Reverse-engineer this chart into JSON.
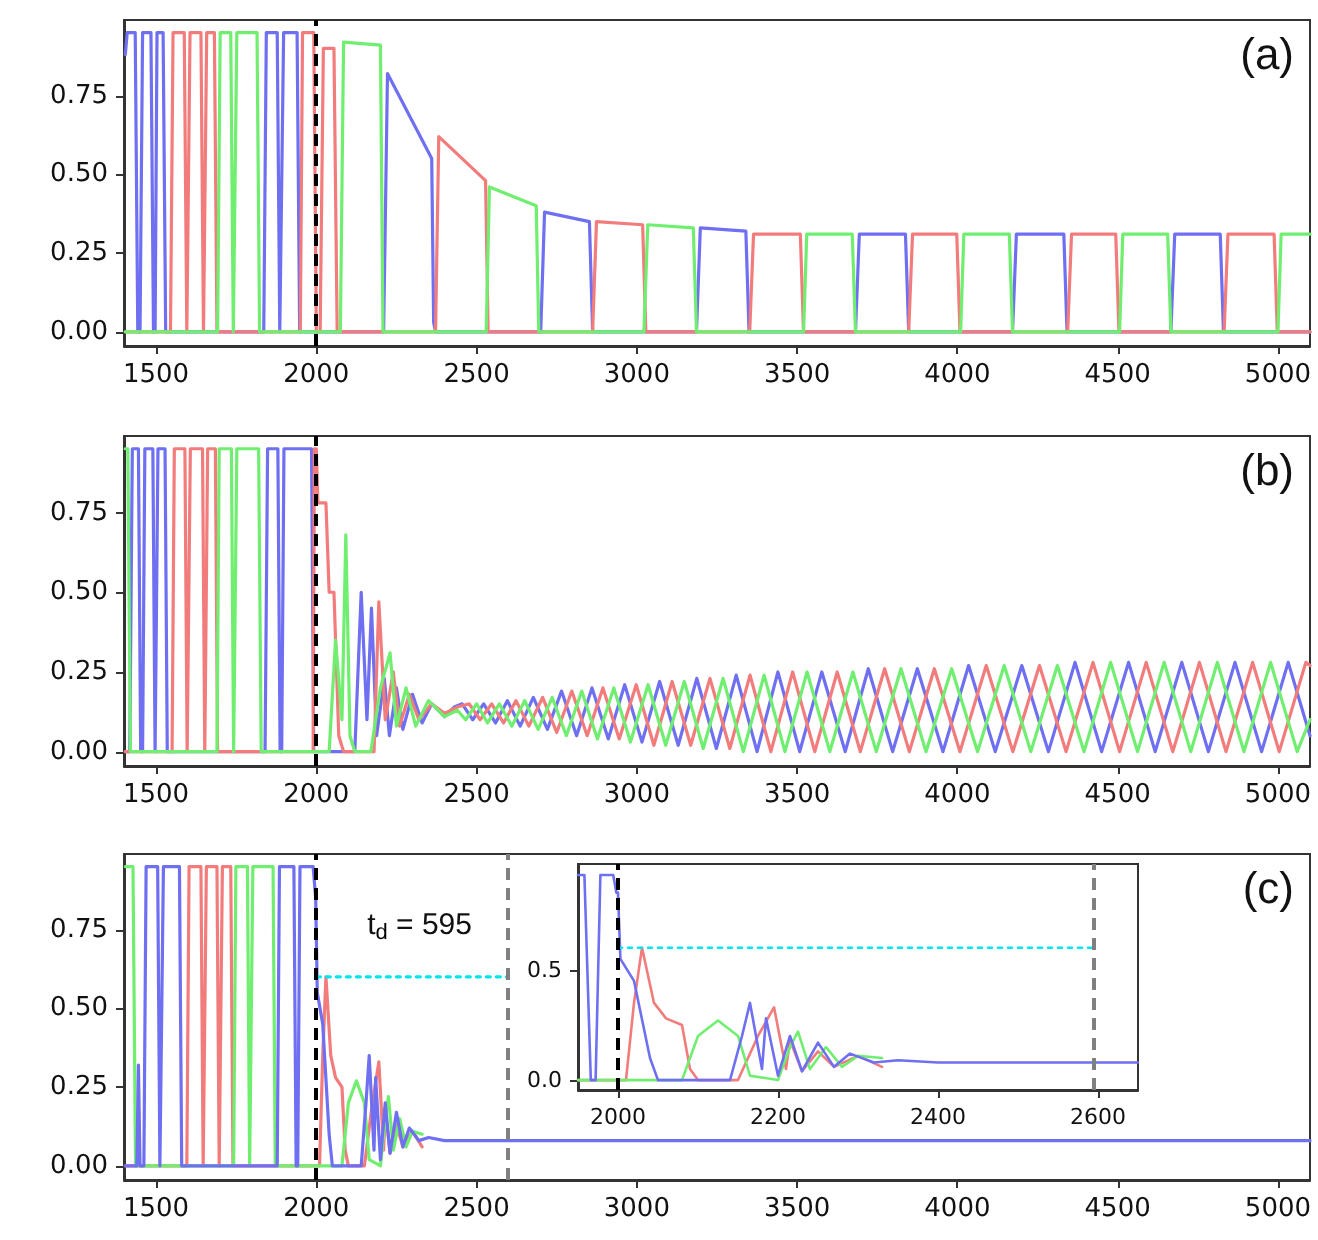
{
  "chart_data": [
    {
      "type": "line",
      "line_style": "solid",
      "xlim": [
        1400,
        5100
      ],
      "ylim": [
        -0.045,
        0.99
      ],
      "xticks": [
        1500,
        2000,
        2500,
        3000,
        3500,
        4000,
        4500,
        5000
      ],
      "yticks": [
        {
          "value": 0,
          "label": "0.00"
        },
        {
          "value": 0.25,
          "label": "0.25"
        },
        {
          "value": 0.5,
          "label": "0.50"
        },
        {
          "value": 0.75,
          "label": "0.75"
        }
      ],
      "annotations": [
        "(a)"
      ],
      "ref_lines": [
        {
          "axis": "x",
          "value": 2000,
          "color": "#000000",
          "line_style": "dashed"
        }
      ],
      "series": [
        {
          "color": "#6f6ff2",
          "x": [
            1404,
            1410,
            1435,
            1443,
            1450,
            1458,
            1484,
            1492,
            1497,
            1503,
            1522,
            1530,
            1836,
            1844,
            1878,
            1886,
            1890,
            1898,
            1940,
            1948,
            2210,
            2222,
            2360,
            2366,
            2372,
            2700,
            2712,
            2852,
            2862,
            3186,
            3198,
            3340,
            3350,
            3682,
            3694,
            3838,
            3848,
            4172,
            4184,
            4332,
            4342,
            4666,
            4678,
            4820,
            4830,
            5100
          ],
          "values": [
            0.88,
            0.95,
            0.95,
            0,
            0,
            0.95,
            0.95,
            0,
            0,
            0.95,
            0.95,
            0,
            0,
            0.95,
            0.95,
            0,
            0,
            0.95,
            0.95,
            0,
            0,
            0.82,
            0.55,
            0.03,
            0,
            0,
            0.38,
            0.35,
            0,
            0,
            0.33,
            0.32,
            0,
            0,
            0.31,
            0.31,
            0,
            0,
            0.31,
            0.31,
            0,
            0,
            0.31,
            0.31,
            0,
            0
          ]
        },
        {
          "color": "#f27c7c",
          "x": [
            1404,
            1545,
            1553,
            1588,
            1596,
            1598,
            1606,
            1640,
            1648,
            1651,
            1658,
            1682,
            1690,
            1950,
            1957,
            1992,
            2000,
            2012,
            2022,
            2055,
            2065,
            2372,
            2382,
            2528,
            2536,
            2862,
            2874,
            3018,
            3028,
            3352,
            3364,
            3510,
            3520,
            3848,
            3860,
            3998,
            4008,
            4344,
            4356,
            4494,
            4504,
            4832,
            4844,
            4988,
            4998,
            5100
          ],
          "values": [
            0,
            0,
            0.95,
            0.95,
            0,
            0,
            0.95,
            0.95,
            0,
            0,
            0.95,
            0.95,
            0,
            0,
            0.95,
            0.95,
            0,
            0,
            0.9,
            0.9,
            0,
            0,
            0.62,
            0.48,
            0,
            0,
            0.35,
            0.34,
            0,
            0,
            0.31,
            0.31,
            0,
            0,
            0.31,
            0.31,
            0,
            0,
            0.31,
            0.31,
            0,
            0,
            0.31,
            0.31,
            0,
            0
          ]
        },
        {
          "color": "#70ee70",
          "x": [
            1404,
            1692,
            1700,
            1733,
            1741,
            1744,
            1752,
            1815,
            1823,
            2075,
            2085,
            2200,
            2208,
            2530,
            2540,
            2686,
            2694,
            3022,
            3034,
            3176,
            3186,
            3520,
            3530,
            3672,
            3682,
            4010,
            4020,
            4162,
            4172,
            4506,
            4516,
            4656,
            4666,
            5000,
            5010,
            5100
          ],
          "values": [
            0,
            0,
            0.95,
            0.95,
            0,
            0,
            0.95,
            0.95,
            0,
            0,
            0.92,
            0.91,
            0,
            0,
            0.46,
            0.4,
            0,
            0,
            0.34,
            0.33,
            0,
            0,
            0.31,
            0.31,
            0,
            0,
            0.31,
            0.31,
            0,
            0,
            0.31,
            0.31,
            0,
            0,
            0.31,
            0.31
          ]
        }
      ]
    },
    {
      "type": "line",
      "line_style": "solid",
      "xlim": [
        1400,
        5100
      ],
      "ylim": [
        -0.045,
        0.99
      ],
      "xticks": [
        1500,
        2000,
        2500,
        3000,
        3500,
        4000,
        4500,
        5000
      ],
      "yticks": [
        {
          "value": 0,
          "label": "0.00"
        },
        {
          "value": 0.25,
          "label": "0.25"
        },
        {
          "value": 0.5,
          "label": "0.50"
        },
        {
          "value": 0.75,
          "label": "0.75"
        }
      ],
      "annotations": [
        "(b)"
      ],
      "ref_lines": [
        {
          "axis": "x",
          "value": 2000,
          "color": "#000000",
          "line_style": "dashed"
        }
      ],
      "series": [
        {
          "color": "#6f6ff2",
          "x": [
            1404,
            1418,
            1426,
            1445,
            1452,
            1458,
            1465,
            1490,
            1497,
            1500,
            1506,
            1528,
            1535,
            1840,
            1848,
            1880,
            1887,
            1892,
            1899,
            1985,
            1992,
            2120,
            2140,
            2158,
            2172,
            2188,
            2212,
            2228,
            2250,
            2270,
            2300,
            2330,
            2360,
            2400,
            2430,
            2455,
            2488,
            2522,
            2559,
            2596,
            2636,
            2677,
            2721,
            2765,
            2812,
            2860,
            2911,
            2962,
            3016,
            3071,
            3129,
            3187,
            3248,
            3310,
            3375,
            3440,
            3508,
            3577,
            3650,
            3722,
            3798,
            3875,
            3955,
            4035,
            4118,
            4201,
            4284,
            4367,
            4450,
            4534,
            4617,
            4700,
            4783,
            4866,
            4949,
            5032,
            5100
          ],
          "values": [
            0,
            0,
            0.95,
            0.95,
            0,
            0,
            0.95,
            0.95,
            0,
            0,
            0.95,
            0.95,
            0,
            0,
            0.95,
            0.95,
            0,
            0,
            0.95,
            0.95,
            0,
            0,
            0.5,
            0.1,
            0.45,
            0.05,
            0.23,
            0.05,
            0.2,
            0.07,
            0.18,
            0.09,
            0.15,
            0.11,
            0.14,
            0.15,
            0.1,
            0.15,
            0.09,
            0.16,
            0.08,
            0.17,
            0.07,
            0.19,
            0.05,
            0.2,
            0.04,
            0.21,
            0.03,
            0.22,
            0.02,
            0.23,
            0.01,
            0.24,
            0,
            0.25,
            0,
            0.25,
            0,
            0.26,
            0,
            0.26,
            0,
            0.27,
            0,
            0.27,
            0,
            0.28,
            0,
            0.28,
            0,
            0.28,
            0,
            0.28,
            0,
            0.28,
            0.05
          ]
        },
        {
          "color": "#f27c7c",
          "x": [
            1404,
            1550,
            1557,
            1590,
            1597,
            1600,
            1607,
            1645,
            1652,
            1655,
            1661,
            1685,
            1692,
            1990,
            1994,
            2000,
            2005,
            2030,
            2040,
            2055,
            2070,
            2085,
            2180,
            2195,
            2215,
            2240,
            2260,
            2290,
            2320,
            2360,
            2400,
            2440,
            2477,
            2511,
            2547,
            2584,
            2623,
            2663,
            2706,
            2750,
            2797,
            2845,
            2894,
            2945,
            2998,
            3053,
            3110,
            3168,
            3228,
            3290,
            3353,
            3418,
            3486,
            3555,
            3625,
            3697,
            3773,
            3850,
            3928,
            4008,
            4090,
            4173,
            4256,
            4339,
            4423,
            4506,
            4589,
            4672,
            4755,
            4838,
            4921,
            5004,
            5087,
            5100
          ],
          "values": [
            0,
            0,
            0.95,
            0.95,
            0,
            0,
            0.95,
            0.95,
            0,
            0,
            0.95,
            0.95,
            0,
            0,
            0.95,
            0.95,
            0.78,
            0.78,
            0.5,
            0.5,
            0.05,
            0,
            0,
            0.47,
            0.1,
            0.25,
            0.08,
            0.18,
            0.1,
            0.15,
            0.12,
            0.14,
            0.15,
            0.1,
            0.15,
            0.09,
            0.16,
            0.08,
            0.17,
            0.06,
            0.19,
            0.05,
            0.2,
            0.04,
            0.21,
            0.02,
            0.22,
            0.02,
            0.23,
            0.01,
            0.24,
            0,
            0.25,
            0,
            0.25,
            0,
            0.26,
            0,
            0.26,
            0,
            0.27,
            0,
            0.27,
            0,
            0.28,
            0,
            0.28,
            0,
            0.28,
            0,
            0.28,
            0,
            0.28,
            0.27
          ]
        },
        {
          "color": "#70ee70",
          "x": [
            1404,
            1412,
            1420,
            1690,
            1697,
            1735,
            1742,
            1746,
            1752,
            1820,
            1828,
            2040,
            2060,
            2080,
            2092,
            2105,
            2120,
            2170,
            2200,
            2230,
            2250,
            2280,
            2310,
            2350,
            2400,
            2440,
            2466,
            2500,
            2534,
            2571,
            2610,
            2650,
            2692,
            2736,
            2780,
            2828,
            2877,
            2928,
            2980,
            3035,
            3090,
            3148,
            3207,
            3269,
            3332,
            3397,
            3462,
            3531,
            3602,
            3674,
            3747,
            3824,
            3902,
            3982,
            4063,
            4146,
            4229,
            4312,
            4395,
            4478,
            4562,
            4645,
            4728,
            4811,
            4894,
            4977,
            5060,
            5100
          ],
          "values": [
            0.95,
            0.95,
            0,
            0,
            0.95,
            0.95,
            0,
            0,
            0.95,
            0.95,
            0,
            0,
            0.35,
            0.1,
            0.68,
            0.05,
            0,
            0,
            0.2,
            0.31,
            0.08,
            0.2,
            0.08,
            0.16,
            0.11,
            0.13,
            0.1,
            0.15,
            0.09,
            0.15,
            0.08,
            0.16,
            0.07,
            0.17,
            0.05,
            0.19,
            0.04,
            0.2,
            0.03,
            0.21,
            0.02,
            0.22,
            0.01,
            0.23,
            0,
            0.24,
            0,
            0.25,
            0,
            0.25,
            0,
            0.26,
            0,
            0.26,
            0,
            0.27,
            0,
            0.27,
            0,
            0.28,
            0,
            0.28,
            0,
            0.28,
            0,
            0.28,
            0,
            0.1
          ]
        }
      ]
    },
    {
      "type": "line",
      "line_style": "solid",
      "xlim": [
        1400,
        5100
      ],
      "ylim": [
        -0.045,
        0.99
      ],
      "xticks": [
        1500,
        2000,
        2500,
        3000,
        3500,
        4000,
        4500,
        5000
      ],
      "yticks": [
        {
          "value": 0,
          "label": "0.00"
        },
        {
          "value": 0.25,
          "label": "0.25"
        },
        {
          "value": 0.5,
          "label": "0.50"
        },
        {
          "value": 0.75,
          "label": "0.75"
        }
      ],
      "annotations": [
        "(c)",
        "t$_{d}$ = 595"
      ],
      "ref_lines": [
        {
          "axis": "x",
          "value": 2000,
          "color": "#000000",
          "line_style": "dashed"
        },
        {
          "axis": "x",
          "value": 2595,
          "color": "#808080",
          "line_style": "dashed"
        }
      ],
      "series": [
        {
          "color": "#f27c7c",
          "x": [
            1404,
            1596,
            1603,
            1640,
            1647,
            1650,
            1657,
            1690,
            1697,
            1700,
            1707,
            1733,
            1740,
            2010,
            2020,
            2030,
            2045,
            2060,
            2080,
            2090,
            2100,
            2150,
            2175,
            2195,
            2210,
            2215,
            2230,
            2250,
            2270,
            2300,
            2330
          ],
          "values": [
            0,
            0,
            0.95,
            0.95,
            0,
            0,
            0.95,
            0.95,
            0,
            0,
            0.95,
            0.95,
            0,
            0,
            0.35,
            0.6,
            0.35,
            0.28,
            0.25,
            0.05,
            0,
            0,
            0.2,
            0.33,
            0.05,
            0.18,
            0.04,
            0.13,
            0.06,
            0.11,
            0.06
          ]
        },
        {
          "color": "#70ee70",
          "x": [
            1404,
            1428,
            1436,
            1742,
            1749,
            1785,
            1792,
            1795,
            1802,
            1865,
            1872,
            2080,
            2100,
            2125,
            2150,
            2165,
            2200,
            2215,
            2225,
            2240,
            2260,
            2280,
            2300,
            2330
          ],
          "values": [
            0.95,
            0.95,
            0,
            0,
            0.95,
            0.95,
            0,
            0,
            0.95,
            0.95,
            0,
            0,
            0.2,
            0.27,
            0.2,
            0.02,
            0,
            0.15,
            0.22,
            0.05,
            0.15,
            0.06,
            0.11,
            0.1
          ]
        },
        {
          "color": "#6f6ff2",
          "x": [
            1404,
            1440,
            1445,
            1450,
            1462,
            1469,
            1505,
            1512,
            1516,
            1523,
            1573,
            1580,
            1878,
            1885,
            1930,
            1937,
            1942,
            1949,
            1990,
            1998,
            2000,
            2003,
            2020,
            2040,
            2050,
            2140,
            2155,
            2165,
            2180,
            2185,
            2200,
            2215,
            2230,
            2250,
            2270,
            2290,
            2320,
            2350,
            2400,
            5100
          ],
          "values": [
            0,
            0,
            0.32,
            0,
            0,
            0.95,
            0.95,
            0,
            0,
            0.95,
            0.95,
            0,
            0,
            0.95,
            0.95,
            0,
            0,
            0.95,
            0.95,
            0.85,
            0.85,
            0.55,
            0.45,
            0.1,
            0,
            0,
            0.2,
            0.35,
            0.05,
            0.28,
            0.02,
            0.2,
            0.04,
            0.17,
            0.06,
            0.12,
            0.08,
            0.09,
            0.08,
            0.08
          ]
        },
        {
          "type": "line",
          "line_style": "dotted",
          "color": "#00e5ee",
          "x": [
            2000,
            2595
          ],
          "values": [
            0.6,
            0.6
          ]
        }
      ]
    },
    {
      "type": "line",
      "line_style": "solid",
      "xlim": [
        1950,
        2650
      ],
      "ylim": [
        -0.045,
        0.98
      ],
      "xticks": [
        2000,
        2200,
        2400,
        2600
      ],
      "yticks": [
        {
          "value": 0,
          "label": "0.0"
        },
        0.5
      ],
      "ref_lines": [
        {
          "axis": "x",
          "value": 2000,
          "color": "#000000",
          "line_style": "dashed"
        },
        {
          "axis": "x",
          "value": 2595,
          "color": "#808080",
          "line_style": "dashed"
        }
      ],
      "series": [
        {
          "color": "#f27c7c",
          "x": [
            1950,
            2010,
            2020,
            2030,
            2045,
            2060,
            2080,
            2090,
            2100,
            2150,
            2175,
            2195,
            2210,
            2215,
            2230,
            2250,
            2270,
            2300,
            2330
          ],
          "values": [
            0,
            0,
            0.35,
            0.6,
            0.35,
            0.28,
            0.25,
            0.05,
            0,
            0,
            0.2,
            0.33,
            0.05,
            0.18,
            0.04,
            0.13,
            0.06,
            0.11,
            0.06
          ]
        },
        {
          "color": "#70ee70",
          "x": [
            1950,
            2080,
            2100,
            2125,
            2150,
            2165,
            2200,
            2215,
            2225,
            2240,
            2260,
            2280,
            2300,
            2330
          ],
          "values": [
            0,
            0,
            0.2,
            0.27,
            0.2,
            0.02,
            0,
            0.15,
            0.22,
            0.05,
            0.15,
            0.06,
            0.11,
            0.1
          ]
        },
        {
          "color": "#6f6ff2",
          "x": [
            1950,
            1958,
            1966,
            1972,
            1978,
            1994,
            1998,
            2000,
            2003,
            2020,
            2040,
            2050,
            2140,
            2155,
            2165,
            2180,
            2185,
            2200,
            2215,
            2230,
            2250,
            2270,
            2290,
            2320,
            2350,
            2400,
            2650
          ],
          "values": [
            0.93,
            0.93,
            0,
            0,
            0.93,
            0.93,
            0.85,
            0.85,
            0.55,
            0.45,
            0.1,
            0,
            0,
            0.2,
            0.35,
            0.05,
            0.28,
            0.02,
            0.2,
            0.04,
            0.17,
            0.06,
            0.12,
            0.08,
            0.09,
            0.08,
            0.08
          ]
        },
        {
          "type": "line",
          "line_style": "dotted",
          "color": "#00e5ee",
          "x": [
            2000,
            2595
          ],
          "values": [
            0.6,
            0.6
          ]
        }
      ]
    }
  ]
}
